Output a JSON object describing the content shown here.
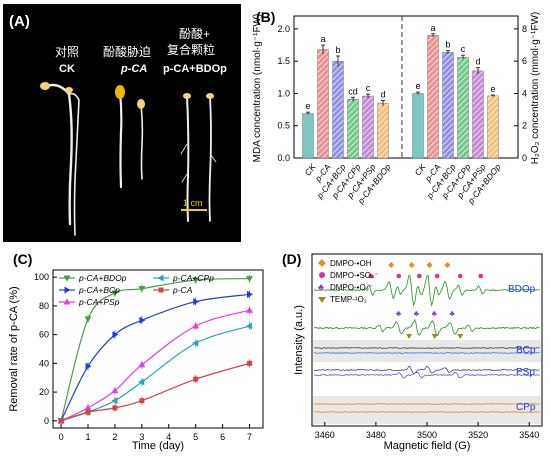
{
  "colors": {
    "ck": "#7cc7c2",
    "pca": "#f08f92",
    "bc": "#8f8fe8",
    "cp": "#74c98a",
    "ps": "#c788d8",
    "bdo": "#f2bf78",
    "hred": "#d24545",
    "hgreen": "#4c9a47",
    "hblue": "#1f3fd8",
    "hcyan": "#2aa5b8",
    "hmag": "#e33ce0",
    "orange": "#f08a1e",
    "pink": "#e32f8f",
    "purple": "#7f33d0",
    "olive": "#9a8b18"
  },
  "panelA": {
    "label": "(A)",
    "groups": [
      {
        "zh": "对照",
        "en": "CK"
      },
      {
        "zh": "酚酸胁迫",
        "en": "p-CA"
      },
      {
        "zh": "酚酸+",
        "zh2": "复合颗粒",
        "en": "p-CA+BDOp"
      }
    ],
    "scale": "1 cm"
  },
  "panelB": {
    "label": "(B)",
    "ylabel_left": "MDA concentration (nmol·g⁻¹FW)",
    "ylabel_right": "H₂O₂ concentration (mmol·g⁻¹FW)",
    "left_ticks": [
      "0.0",
      "0.5",
      "1.0",
      "1.5",
      "2.0"
    ],
    "right_ticks": [
      "0",
      "2",
      "4",
      "6",
      "8"
    ]
  },
  "panelC": {
    "label": "(C)",
    "ylabel": "Removal rate of p-CA (%)",
    "xlabel": "Time (day)",
    "xticks": [
      "0",
      "1",
      "2",
      "3",
      "4",
      "5",
      "6",
      "7"
    ],
    "yticks": [
      "0",
      "20",
      "40",
      "60",
      "80",
      "100"
    ]
  },
  "panelD": {
    "label": "(D)",
    "legend": [
      "DMPO-•OH",
      "DMPO-•SO₄⁻",
      "DMPO-•O₂⁻",
      "TEMP-¹O₂"
    ],
    "trace_labels": [
      "BDOp",
      "BCp",
      "PSp",
      "CPp"
    ],
    "ylabel": "Intensity (a.u.)",
    "xlabel": "Magnetic field (G)",
    "xticks": [
      "3460",
      "3480",
      "3500",
      "3520",
      "3540"
    ]
  },
  "chart_data": [
    {
      "type": "bar",
      "title": "MDA",
      "categories": [
        "CK",
        "p-CA",
        "p-CA+BCp",
        "p-CA+CPp",
        "p-CA+PSp",
        "p-CA+BDOp"
      ],
      "values": [
        0.69,
        1.68,
        1.5,
        0.91,
        0.96,
        0.85
      ],
      "errors": [
        0.02,
        0.07,
        0.08,
        0.03,
        0.03,
        0.04
      ],
      "letters": [
        "e",
        "a",
        "b",
        "cd",
        "c",
        "d"
      ],
      "ylim": [
        0,
        2.2
      ],
      "ylabel": "MDA concentration (nmol·g⁻¹FW)"
    },
    {
      "type": "bar",
      "title": "H2O2",
      "categories": [
        "CK",
        "p-CA",
        "p-CA+BCp",
        "p-CA+CPp",
        "p-CA+PSp",
        "p-CA+BDOp"
      ],
      "values": [
        4.0,
        7.6,
        6.55,
        6.25,
        5.4,
        3.85
      ],
      "errors": [
        0.08,
        0.1,
        0.1,
        0.12,
        0.2,
        0.05
      ],
      "letters": [
        "e",
        "a",
        "b",
        "c",
        "d",
        "e"
      ],
      "ylim": [
        0,
        8.8
      ],
      "ylabel": "H₂O₂ concentration (mmol·g⁻¹FW)"
    },
    {
      "type": "line",
      "xlabel": "Time (day)",
      "ylabel": "Removal rate of p-CA (%)",
      "xlim": [
        -0.3,
        7.5
      ],
      "ylim": [
        -5,
        105
      ],
      "x": [
        0,
        1,
        2,
        3,
        5,
        7
      ],
      "series": [
        {
          "name": "p-CA+BDOp",
          "values": [
            0,
            71,
            89,
            92,
            98,
            99
          ]
        },
        {
          "name": "p-CA+BCp",
          "values": [
            0,
            38,
            60,
            70,
            83,
            88
          ]
        },
        {
          "name": "p-CA+PSp",
          "values": [
            0,
            9,
            21,
            39,
            66,
            77
          ]
        },
        {
          "name": "p-CA+CPp",
          "values": [
            0,
            6,
            14,
            27,
            54,
            66
          ]
        },
        {
          "name": "p-CA",
          "values": [
            0,
            6,
            9,
            14,
            29,
            40
          ]
        }
      ]
    }
  ]
}
